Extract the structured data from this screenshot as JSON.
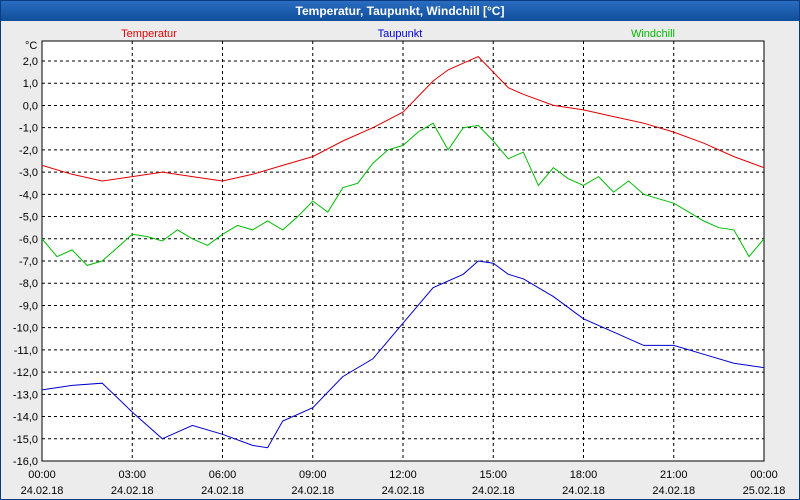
{
  "window": {
    "title": "Temperatur, Taupunkt, Windchill [°C]"
  },
  "chart_data": {
    "type": "line",
    "title": "Temperatur, Taupunkt, Windchill [°C]",
    "ylabel": "°C",
    "xlabel": "",
    "ylim": [
      -16,
      3
    ],
    "grid": true,
    "legend_position": "top",
    "y_ticks": [
      "2,0",
      "1,0",
      "0,0",
      "-1,0",
      "-2,0",
      "-3,0",
      "-4,0",
      "-5,0",
      "-6,0",
      "-7,0",
      "-8,0",
      "-9,0",
      "-10,0",
      "-11,0",
      "-12,0",
      "-13,0",
      "-14,0",
      "-15,0",
      "-16,0"
    ],
    "x_ticks": [
      {
        "time": "00:00",
        "date": "24.02.18"
      },
      {
        "time": "03:00",
        "date": "24.02.18"
      },
      {
        "time": "06:00",
        "date": "24.02.18"
      },
      {
        "time": "09:00",
        "date": "24.02.18"
      },
      {
        "time": "12:00",
        "date": "24.02.18"
      },
      {
        "time": "15:00",
        "date": "24.02.18"
      },
      {
        "time": "18:00",
        "date": "24.02.18"
      },
      {
        "time": "21:00",
        "date": "24.02.18"
      },
      {
        "time": "00:00",
        "date": "25.02.18"
      }
    ],
    "x_unit": "hours since 24.02.18 00:00",
    "series": [
      {
        "name": "Temperatur",
        "color": "#e00000",
        "x": [
          0,
          1,
          2,
          3,
          4,
          5,
          6,
          7,
          8,
          9,
          10,
          11,
          12,
          12.5,
          13,
          13.5,
          14,
          14.5,
          15,
          15.5,
          16,
          17,
          18,
          19,
          20,
          21,
          22,
          23,
          24
        ],
        "values": [
          -2.7,
          -3.1,
          -3.4,
          -3.2,
          -3.0,
          -3.2,
          -3.4,
          -3.1,
          -2.7,
          -2.3,
          -1.6,
          -1.0,
          -0.3,
          0.4,
          1.1,
          1.6,
          1.9,
          2.2,
          1.5,
          0.8,
          0.5,
          0.0,
          -0.2,
          -0.5,
          -0.8,
          -1.2,
          -1.7,
          -2.3,
          -2.8
        ]
      },
      {
        "name": "Taupunkt",
        "color": "#0000cc",
        "x": [
          0,
          1,
          2,
          3,
          4,
          5,
          6,
          7,
          7.5,
          8,
          9,
          10,
          11,
          12,
          13,
          14,
          14.5,
          15,
          15.5,
          16,
          17,
          18,
          19,
          20,
          21,
          22,
          23,
          24
        ],
        "values": [
          -12.8,
          -12.6,
          -12.5,
          -13.8,
          -15.0,
          -14.4,
          -14.8,
          -15.3,
          -15.4,
          -14.2,
          -13.6,
          -12.2,
          -11.4,
          -9.8,
          -8.2,
          -7.6,
          -7.0,
          -7.1,
          -7.6,
          -7.8,
          -8.6,
          -9.6,
          -10.2,
          -10.8,
          -10.8,
          -11.2,
          -11.6,
          -11.8
        ]
      },
      {
        "name": "Windchill",
        "color": "#00bb00",
        "x": [
          0,
          0.5,
          1,
          1.5,
          2,
          2.5,
          3,
          3.5,
          4,
          4.5,
          5,
          5.5,
          6,
          6.5,
          7,
          7.5,
          8,
          8.5,
          9,
          9.5,
          10,
          10.5,
          11,
          11.5,
          12,
          12.5,
          13,
          13.5,
          14,
          14.5,
          15,
          15.5,
          16,
          16.5,
          17,
          17.5,
          18,
          18.5,
          19,
          19.5,
          20,
          20.5,
          21,
          21.5,
          22,
          22.5,
          23,
          23.5,
          24
        ],
        "values": [
          -6.0,
          -6.8,
          -6.5,
          -7.2,
          -7.0,
          -6.4,
          -5.8,
          -5.9,
          -6.1,
          -5.6,
          -6.0,
          -6.3,
          -5.8,
          -5.4,
          -5.6,
          -5.2,
          -5.6,
          -5.0,
          -4.3,
          -4.8,
          -3.7,
          -3.5,
          -2.6,
          -2.0,
          -1.8,
          -1.2,
          -0.8,
          -2.0,
          -1.0,
          -0.9,
          -1.6,
          -2.4,
          -2.1,
          -3.6,
          -2.8,
          -3.3,
          -3.6,
          -3.2,
          -3.9,
          -3.4,
          -4.0,
          -4.2,
          -4.4,
          -4.8,
          -5.2,
          -5.5,
          -5.6,
          -6.8,
          -6.0
        ]
      }
    ]
  }
}
